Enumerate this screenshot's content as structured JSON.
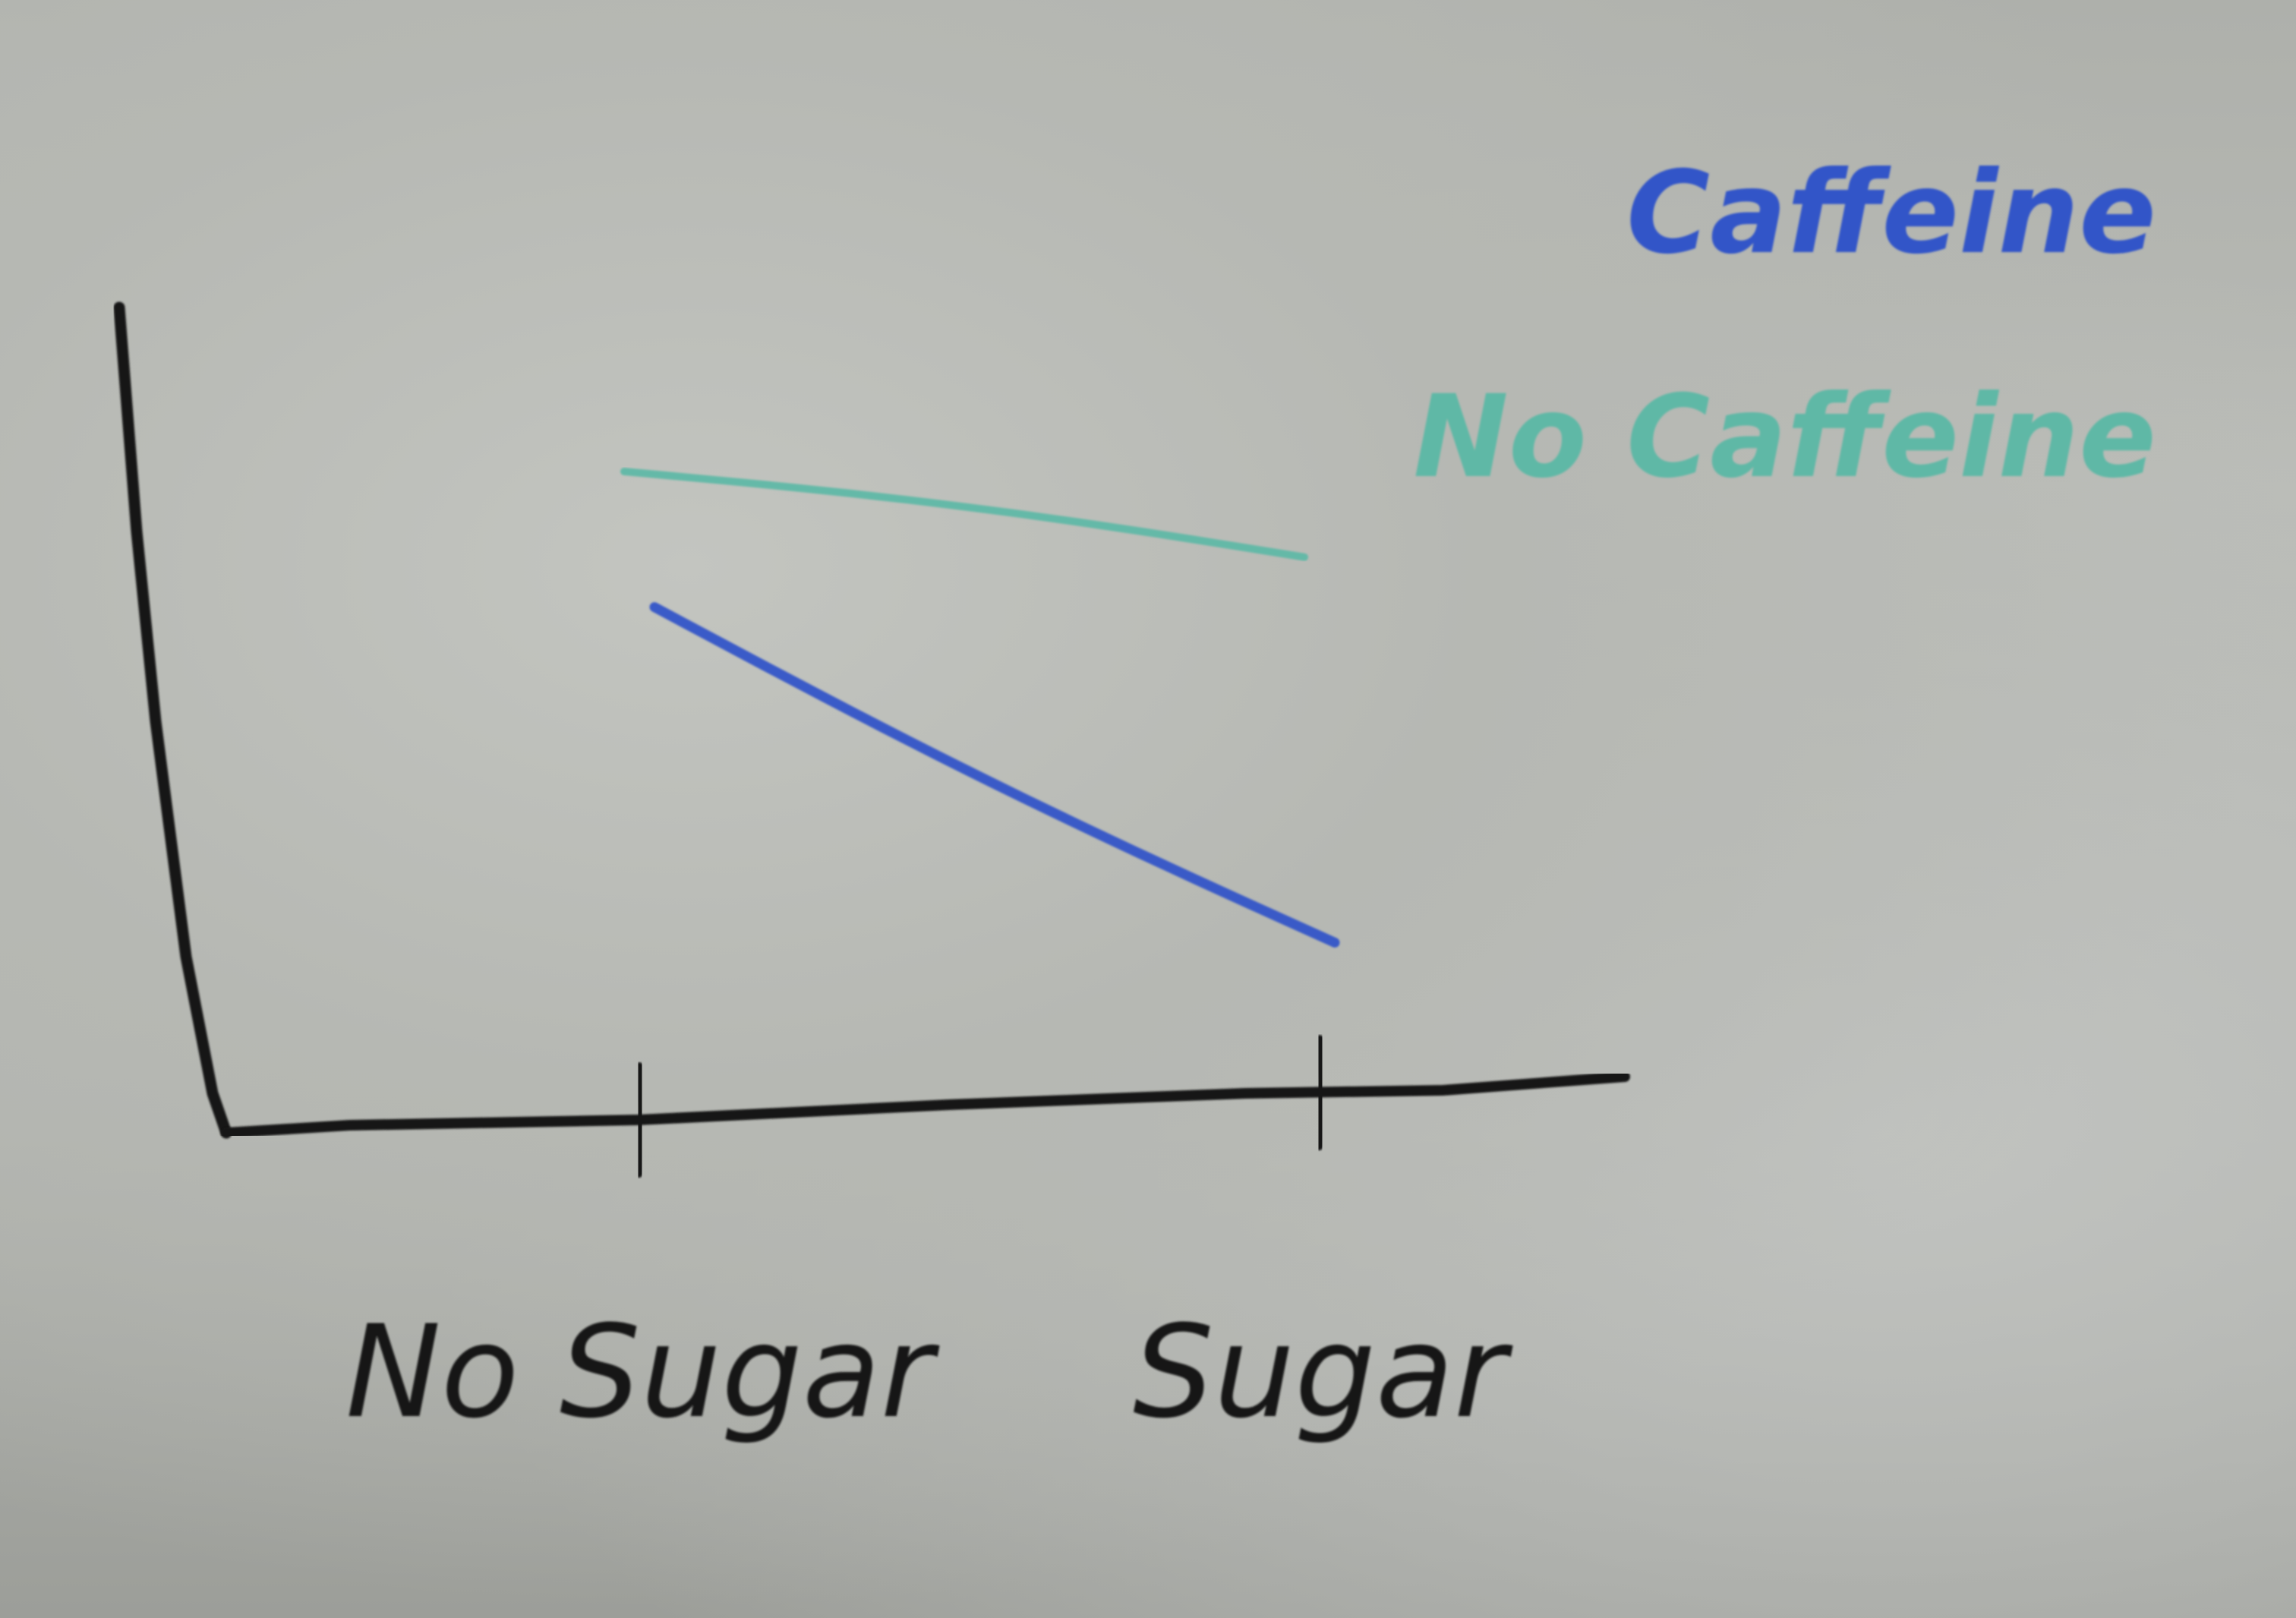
{
  "chart_data": {
    "type": "line",
    "title": "",
    "xlabel": "",
    "ylabel": "",
    "categories": [
      "No Sugar",
      "Sugar"
    ],
    "series": [
      {
        "name": "No Caffeine",
        "color": "#5fb8a6",
        "values": [
          0.85,
          0.73
        ]
      },
      {
        "name": "Caffeine",
        "color": "#3354c8",
        "values": [
          0.66,
          0.19
        ]
      }
    ],
    "ylim": [
      0,
      1
    ],
    "grid": false,
    "legend": {
      "position": "top-right",
      "entries": [
        "Caffeine",
        "No Caffeine"
      ]
    }
  }
}
